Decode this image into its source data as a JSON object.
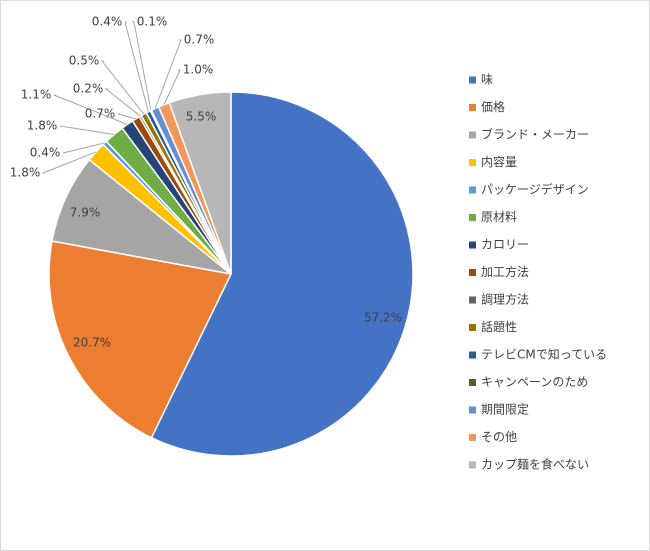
{
  "chart_data": {
    "type": "pie",
    "categories": [
      "味",
      "価格",
      "ブランド・メーカー",
      "内容量",
      "パッケージデザイン",
      "原材料",
      "カロリー",
      "加工方法",
      "調理方法",
      "話題性",
      "テレビCMで知っている",
      "キャンペーンのため",
      "期間限定",
      "その他",
      "カップ麺を食べない"
    ],
    "values": [
      57.2,
      20.7,
      7.9,
      1.8,
      0.4,
      1.8,
      1.1,
      0.7,
      0.2,
      0.5,
      0.4,
      0.1,
      0.7,
      1.0,
      5.5
    ],
    "value_labels": [
      "57.2%",
      "20.7%",
      "7.9%",
      "1.8%",
      "0.4%",
      "1.8%",
      "1.1%",
      "0.7%",
      "0.2%",
      "0.5%",
      "0.4%",
      "0.1%",
      "0.7%",
      "1.0%",
      "5.5%"
    ],
    "colors": [
      "#4472c4",
      "#ed7d31",
      "#a5a5a5",
      "#ffc000",
      "#5b9bd5",
      "#70ad47",
      "#264478",
      "#9e480e",
      "#636363",
      "#997300",
      "#255e91",
      "#43682b",
      "#698ed0",
      "#f1975a",
      "#b7b7b7"
    ],
    "legend": "right"
  }
}
